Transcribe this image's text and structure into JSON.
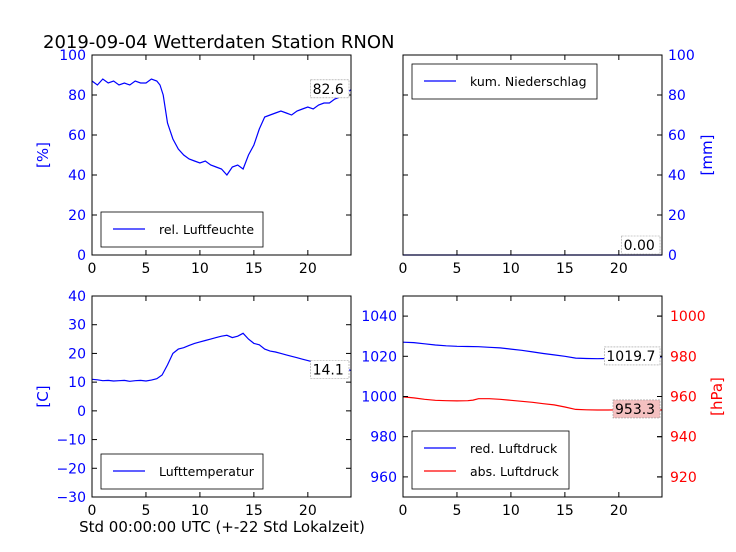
{
  "title": "2019-09-04 Wetterdaten Station RNON",
  "xlabel": "Std 00:00:00 UTC (+-22 Std Lokalzeit)",
  "colors": {
    "blue": "#0000ff",
    "red": "#ff0000",
    "axis": "#000000"
  },
  "chart_data": [
    {
      "type": "line",
      "panel": "top-left",
      "ylabel": "[%]",
      "xlim": [
        0,
        24
      ],
      "ylim": [
        0,
        100
      ],
      "xticks": [
        "0",
        "5",
        "10",
        "15",
        "20"
      ],
      "yticks": [
        "0",
        "20",
        "40",
        "60",
        "80",
        "100"
      ],
      "legend": "bottom",
      "last_value": "82.6",
      "series": [
        {
          "name": "rel. Luftfeuchte",
          "color": "#0000ff",
          "x": [
            0,
            0.5,
            1,
            1.5,
            2,
            2.5,
            3,
            3.5,
            4,
            4.5,
            5,
            5.5,
            6,
            6.3,
            6.6,
            7,
            7.5,
            8,
            8.5,
            9,
            9.5,
            10,
            10.5,
            11,
            11.5,
            12,
            12.5,
            13,
            13.5,
            14,
            14.5,
            15,
            15.5,
            16,
            16.5,
            17,
            17.5,
            18,
            18.5,
            19,
            19.5,
            20,
            20.5,
            21,
            21.5,
            22,
            22.5,
            23,
            23.5,
            24
          ],
          "y": [
            87,
            85,
            88,
            86,
            87,
            85,
            86,
            85,
            87,
            86,
            86,
            88,
            87,
            85,
            80,
            66,
            58,
            53,
            50,
            48,
            47,
            46,
            47,
            45,
            44,
            43,
            40,
            44,
            45,
            43,
            50,
            55,
            63,
            69,
            70,
            71,
            72,
            71,
            70,
            72,
            73,
            74,
            73,
            75,
            76,
            76,
            78,
            79,
            81,
            82.6
          ]
        }
      ]
    },
    {
      "type": "line",
      "panel": "top-right",
      "ylabel": "[mm]",
      "xlim": [
        0,
        24
      ],
      "ylim": [
        0,
        100
      ],
      "xticks": [
        "0",
        "5",
        "10",
        "15",
        "20"
      ],
      "yticks": [
        "0",
        "20",
        "40",
        "60",
        "80",
        "100"
      ],
      "legend": "top",
      "last_value": "0.00",
      "series": [
        {
          "name": "kum. Niederschlag",
          "color": "#0000ff",
          "x": [
            0,
            24
          ],
          "y": [
            0,
            0
          ]
        }
      ]
    },
    {
      "type": "line",
      "panel": "bottom-left",
      "ylabel": "[C]",
      "xlim": [
        0,
        24
      ],
      "ylim": [
        -30,
        40
      ],
      "xticks": [
        "0",
        "5",
        "10",
        "15",
        "20"
      ],
      "yticks": [
        "−30",
        "−20",
        "−10",
        "0",
        "10",
        "20",
        "30",
        "40"
      ],
      "legend": "bottom",
      "last_value": "14.1",
      "series": [
        {
          "name": "Lufttemperatur",
          "color": "#0000ff",
          "x": [
            0,
            0.5,
            1,
            1.5,
            2,
            2.5,
            3,
            3.5,
            4,
            4.5,
            5,
            5.5,
            6,
            6.5,
            7,
            7.5,
            8,
            8.5,
            9,
            9.5,
            10,
            10.5,
            11,
            11.5,
            12,
            12.5,
            13,
            13.5,
            14,
            14.5,
            15,
            15.5,
            16,
            16.5,
            17,
            17.5,
            18,
            18.5,
            19,
            19.5,
            20,
            20.5,
            21,
            21.5,
            22,
            22.5,
            23,
            23.5,
            24
          ],
          "y": [
            11,
            10.8,
            10.5,
            10.6,
            10.4,
            10.5,
            10.6,
            10.3,
            10.5,
            10.6,
            10.4,
            10.7,
            11.2,
            12.5,
            16,
            20,
            21.5,
            22,
            22.8,
            23.5,
            24,
            24.5,
            25,
            25.5,
            26,
            26.3,
            25.5,
            26,
            27,
            25,
            23.5,
            23,
            21.5,
            20.8,
            20.5,
            20,
            19.5,
            19,
            18.5,
            18,
            17.5,
            17,
            16.5,
            16,
            15.5,
            15,
            14.8,
            14.5,
            14.1
          ]
        }
      ]
    },
    {
      "type": "line",
      "panel": "bottom-right",
      "ylabel": "[hPa]",
      "xlim": [
        0,
        24
      ],
      "ylim": [
        950,
        1050
      ],
      "ylim_right": [
        910,
        1010
      ],
      "xticks": [
        "0",
        "5",
        "10",
        "15",
        "20"
      ],
      "yticks": [
        "960",
        "980",
        "1000",
        "1020",
        "1040"
      ],
      "yticks_right": [
        "920",
        "940",
        "960",
        "980",
        "1000"
      ],
      "legend": "bottom",
      "last_value": "1019.7",
      "last_value_right": "953.3",
      "series": [
        {
          "name": "red. Luftdruck",
          "color": "#0000ff",
          "axis": "left",
          "x": [
            0,
            1,
            2,
            3,
            4,
            5,
            6,
            7,
            8,
            9,
            10,
            11,
            12,
            13,
            14,
            15,
            16,
            17,
            18,
            19,
            20,
            21,
            22,
            23,
            24
          ],
          "y": [
            1027,
            1026.8,
            1026.2,
            1025.6,
            1025.2,
            1025,
            1024.9,
            1024.8,
            1024.5,
            1024.2,
            1023.6,
            1023,
            1022.2,
            1021.4,
            1020.7,
            1020,
            1019.1,
            1018.9,
            1018.8,
            1018.9,
            1019,
            1019.2,
            1019.3,
            1019.5,
            1019.7
          ]
        },
        {
          "name": "abs. Luftdruck",
          "color": "#ff0000",
          "axis": "right",
          "x": [
            0,
            1,
            2,
            3,
            4,
            5,
            6,
            6.5,
            7,
            8,
            9,
            10,
            11,
            12,
            13,
            14,
            15,
            16,
            17,
            18,
            19,
            20,
            21,
            22,
            23,
            24
          ],
          "y": [
            959.8,
            959.3,
            958.6,
            958.1,
            957.9,
            957.8,
            957.9,
            958.2,
            958.9,
            958.9,
            958.6,
            958.1,
            957.6,
            957.1,
            956.4,
            955.8,
            954.8,
            953.6,
            953.4,
            953.3,
            953.3,
            953.4,
            953.3,
            953.3,
            953.3,
            953.3
          ]
        }
      ]
    }
  ]
}
